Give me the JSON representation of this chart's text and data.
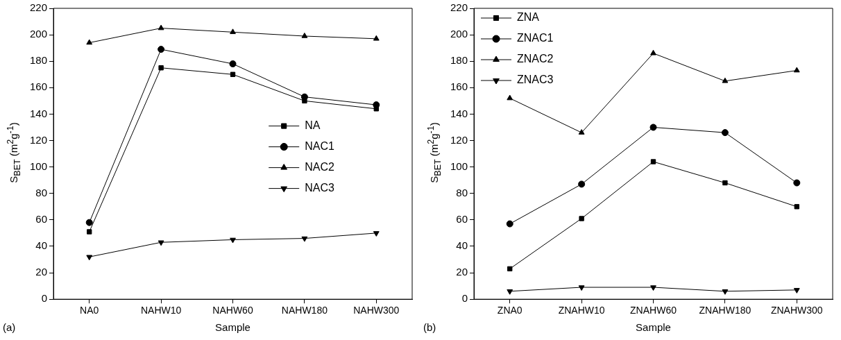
{
  "chart_data": [
    {
      "type": "line",
      "xlabel": "Sample",
      "ylabel": "S$_{BET}$ (m$^{2}$g$^{-1}$)",
      "categories": [
        "NA0",
        "NAHW10",
        "NAHW60",
        "NAHW180",
        "NAHW300"
      ],
      "ylim": [
        0,
        220
      ],
      "yticks": [
        0,
        20,
        40,
        60,
        80,
        100,
        120,
        140,
        160,
        180,
        200,
        220
      ],
      "legend": "right",
      "annotations": [
        "(a)"
      ],
      "series": [
        {
          "name": "NA",
          "color": "#000000",
          "marker": "square",
          "values": [
            51,
            175,
            170,
            150,
            144
          ]
        },
        {
          "name": "NAC1",
          "color": "#000000",
          "marker": "circle",
          "values": [
            58,
            189,
            178,
            153,
            147
          ]
        },
        {
          "name": "NAC2",
          "color": "#000000",
          "marker": "triangle",
          "values": [
            194,
            205,
            202,
            199,
            197
          ]
        },
        {
          "name": "NAC3",
          "color": "#000000",
          "marker": "triangle-down",
          "values": [
            32,
            43,
            45,
            46,
            50
          ]
        }
      ]
    },
    {
      "type": "line",
      "xlabel": "Sample",
      "ylabel": "S$_{BET}$ (m$^{2}$g$^{-1}$)",
      "categories": [
        "ZNA0",
        "ZNAHW10",
        "ZNAHW60",
        "ZNAHW180",
        "ZNAHW300"
      ],
      "ylim": [
        0,
        220
      ],
      "yticks": [
        0,
        20,
        40,
        60,
        80,
        100,
        120,
        140,
        160,
        180,
        200,
        220
      ],
      "legend": "top left",
      "annotations": [
        "(b)"
      ],
      "series": [
        {
          "name": "ZNA",
          "color": "#000000",
          "marker": "square",
          "values": [
            23,
            61,
            104,
            88,
            70
          ]
        },
        {
          "name": "ZNAC1",
          "color": "#000000",
          "marker": "circle",
          "values": [
            57,
            87,
            130,
            126,
            88
          ]
        },
        {
          "name": "ZNAC2",
          "color": "#000000",
          "marker": "triangle",
          "values": [
            152,
            126,
            186,
            165,
            173
          ]
        },
        {
          "name": "ZNAC3",
          "color": "#000000",
          "marker": "triangle-down",
          "values": [
            6,
            9,
            9,
            6,
            7
          ]
        }
      ]
    }
  ]
}
